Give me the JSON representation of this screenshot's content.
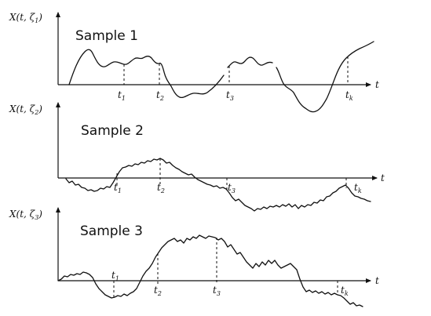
{
  "samples": [
    {
      "title": "Sample 1",
      "ylabel_main": "X(t, ζ",
      "ylabel_sub": "1",
      "ylabel_close": ")",
      "t_axis": "t",
      "ticks": [
        {
          "main": "t",
          "sub": "1"
        },
        {
          "main": "t",
          "sub": "2"
        },
        {
          "main": "t",
          "sub": "3"
        },
        {
          "main": "t",
          "sub": "k"
        }
      ]
    },
    {
      "title": "Sample 2",
      "ylabel_main": "X(t, ζ",
      "ylabel_sub": "2",
      "ylabel_close": ")",
      "t_axis": "t",
      "ticks": [
        {
          "main": "t",
          "sub": "1"
        },
        {
          "main": "t",
          "sub": "2"
        },
        {
          "main": "t",
          "sub": "3"
        },
        {
          "main": "t",
          "sub": "k"
        }
      ]
    },
    {
      "title": "Sample 3",
      "ylabel_main": "X(t, ζ",
      "ylabel_sub": "3",
      "ylabel_close": ")",
      "t_axis": "t",
      "ticks": [
        {
          "main": "t",
          "sub": "1"
        },
        {
          "main": "t",
          "sub": "2"
        },
        {
          "main": "t",
          "sub": "3"
        },
        {
          "main": "t",
          "sub": "k"
        }
      ]
    }
  ]
}
